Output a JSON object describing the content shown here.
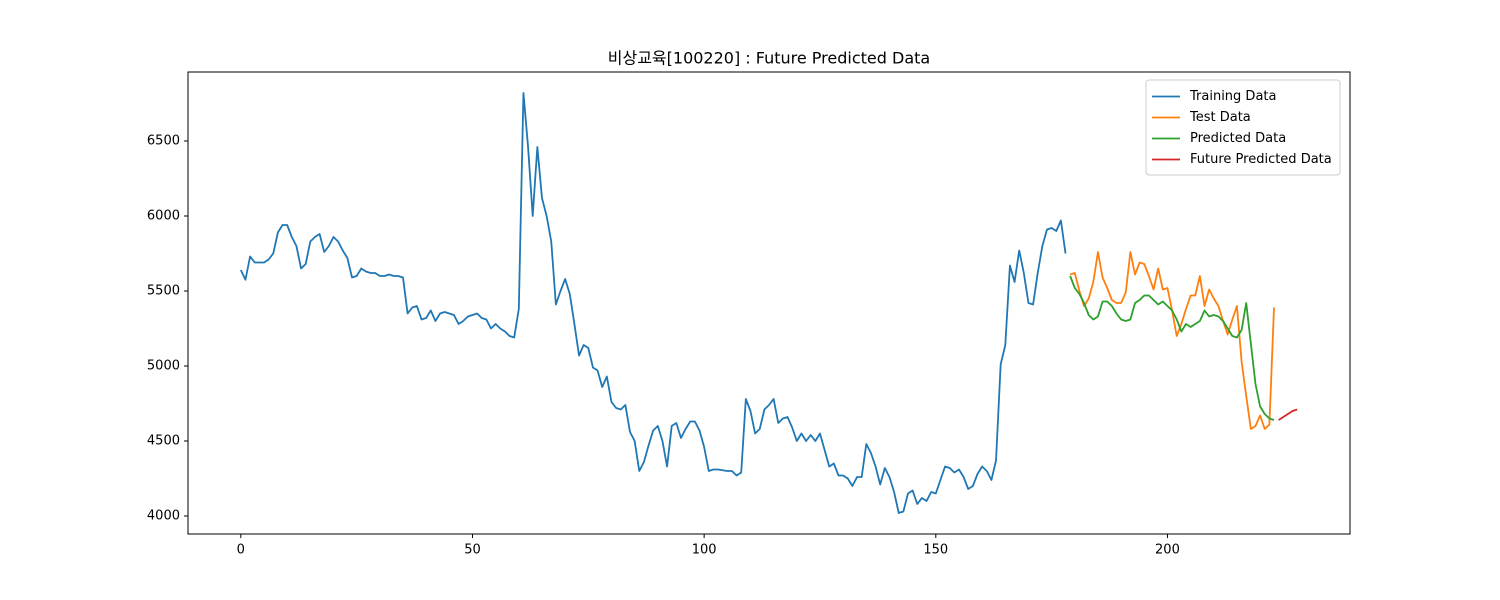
{
  "chart_data": {
    "type": "line",
    "title": "비상교육[100220] : Future Predicted Data",
    "xlim": [
      -11.4,
      239.4
    ],
    "xticks": [
      0,
      50,
      100,
      150,
      200
    ],
    "ylim": [
      3880,
      6960
    ],
    "yticks": [
      4000,
      4500,
      5000,
      5500,
      6000,
      6500
    ],
    "legend": "upper right",
    "series": [
      {
        "name": "Training Data",
        "color": "#1f77b4",
        "x": [
          0,
          1,
          2,
          3,
          4,
          5,
          6,
          7,
          8,
          9,
          10,
          11,
          12,
          13,
          14,
          15,
          16,
          17,
          18,
          19,
          20,
          21,
          22,
          23,
          24,
          25,
          26,
          27,
          28,
          29,
          30,
          31,
          32,
          33,
          34,
          35,
          36,
          37,
          38,
          39,
          40,
          41,
          42,
          43,
          44,
          45,
          46,
          47,
          48,
          49,
          50,
          51,
          52,
          53,
          54,
          55,
          56,
          57,
          58,
          59,
          60,
          61,
          62,
          63,
          64,
          65,
          66,
          67,
          68,
          69,
          70,
          71,
          72,
          73,
          74,
          75,
          76,
          77,
          78,
          79,
          80,
          81,
          82,
          83,
          84,
          85,
          86,
          87,
          88,
          89,
          90,
          91,
          92,
          93,
          94,
          95,
          96,
          97,
          98,
          99,
          100,
          101,
          102,
          103,
          104,
          105,
          106,
          107,
          108,
          109,
          110,
          111,
          112,
          113,
          114,
          115,
          116,
          117,
          118,
          119,
          120,
          121,
          122,
          123,
          124,
          125,
          126,
          127,
          128,
          129,
          130,
          131,
          132,
          133,
          134,
          135,
          136,
          137,
          138,
          139,
          140,
          141,
          142,
          143,
          144,
          145,
          146,
          147,
          148,
          149,
          150,
          151,
          152,
          153,
          154,
          155,
          156,
          157,
          158,
          159,
          160,
          161,
          162,
          163,
          164,
          165,
          166,
          167,
          168,
          169,
          170,
          171,
          172,
          173,
          174,
          175,
          176,
          177,
          178
        ],
        "values": [
          5640,
          5575,
          5730,
          5690,
          5690,
          5690,
          5710,
          5750,
          5890,
          5940,
          5940,
          5860,
          5800,
          5650,
          5680,
          5830,
          5860,
          5880,
          5760,
          5800,
          5860,
          5830,
          5770,
          5720,
          5590,
          5600,
          5650,
          5630,
          5620,
          5620,
          5600,
          5600,
          5610,
          5600,
          5600,
          5590,
          5350,
          5390,
          5400,
          5310,
          5320,
          5370,
          5300,
          5350,
          5360,
          5350,
          5340,
          5280,
          5300,
          5330,
          5340,
          5350,
          5320,
          5310,
          5250,
          5280,
          5250,
          5230,
          5200,
          5190,
          5380,
          6820,
          6460,
          6000,
          6460,
          6120,
          6000,
          5830,
          5410,
          5500,
          5580,
          5480,
          5280,
          5070,
          5140,
          5120,
          4990,
          4970,
          4860,
          4930,
          4760,
          4720,
          4710,
          4740,
          4560,
          4500,
          4300,
          4360,
          4470,
          4570,
          4600,
          4500,
          4330,
          4600,
          4620,
          4520,
          4580,
          4630,
          4630,
          4570,
          4460,
          4300,
          4310,
          4310,
          4305,
          4300,
          4300,
          4270,
          4290,
          4780,
          4700,
          4550,
          4580,
          4710,
          4740,
          4780,
          4620,
          4650,
          4660,
          4590,
          4500,
          4550,
          4500,
          4540,
          4500,
          4550,
          4440,
          4330,
          4350,
          4270,
          4270,
          4250,
          4200,
          4260,
          4260,
          4480,
          4420,
          4330,
          4210,
          4320,
          4260,
          4160,
          4020,
          4030,
          4150,
          4170,
          4080,
          4120,
          4100,
          4160,
          4150,
          4240,
          4330,
          4320,
          4290,
          4310,
          4260,
          4180,
          4200,
          4280,
          4330,
          4300,
          4240,
          4370,
          5010,
          5140,
          5670,
          5560,
          5770,
          5620,
          5420,
          5410,
          5620,
          5800,
          5910,
          5920,
          5900,
          5970,
          5750
        ]
      },
      {
        "name": "Test Data",
        "color": "#ff7f0e",
        "x": [
          179,
          180,
          181,
          182,
          183,
          184,
          185,
          186,
          187,
          188,
          189,
          190,
          191,
          192,
          193,
          194,
          195,
          196,
          197,
          198,
          199,
          200,
          201,
          202,
          203,
          204,
          205,
          206,
          207,
          208,
          209,
          210,
          211,
          212,
          213,
          214,
          215,
          216,
          217,
          218,
          219,
          220,
          221,
          222,
          223
        ],
        "values": [
          5610,
          5620,
          5500,
          5400,
          5450,
          5560,
          5760,
          5590,
          5520,
          5440,
          5420,
          5420,
          5490,
          5760,
          5610,
          5690,
          5680,
          5600,
          5510,
          5650,
          5510,
          5520,
          5370,
          5200,
          5280,
          5380,
          5470,
          5470,
          5600,
          5400,
          5510,
          5450,
          5400,
          5300,
          5210,
          5310,
          5400,
          5030,
          4800,
          4580,
          4600,
          4670,
          4580,
          4610,
          5390
        ]
      },
      {
        "name": "Predicted Data",
        "color": "#2ca02c",
        "x": [
          179,
          180,
          181,
          182,
          183,
          184,
          185,
          186,
          187,
          188,
          189,
          190,
          191,
          192,
          193,
          194,
          195,
          196,
          197,
          198,
          199,
          200,
          201,
          202,
          203,
          204,
          205,
          206,
          207,
          208,
          209,
          210,
          211,
          212,
          213,
          214,
          215,
          216,
          217,
          218,
          219,
          220,
          221,
          222,
          223
        ],
        "values": [
          5600,
          5520,
          5480,
          5420,
          5340,
          5310,
          5330,
          5430,
          5430,
          5400,
          5350,
          5310,
          5300,
          5310,
          5420,
          5440,
          5470,
          5470,
          5440,
          5410,
          5430,
          5400,
          5370,
          5310,
          5230,
          5280,
          5260,
          5280,
          5300,
          5370,
          5330,
          5340,
          5330,
          5300,
          5250,
          5200,
          5190,
          5240,
          5420,
          5150,
          4880,
          4730,
          4680,
          4650,
          4640
        ]
      },
      {
        "name": "Future Predicted Data",
        "color": "#d62728",
        "x": [
          224,
          225,
          226,
          227,
          228
        ],
        "values": [
          4640,
          4660,
          4680,
          4700,
          4710
        ]
      }
    ]
  }
}
